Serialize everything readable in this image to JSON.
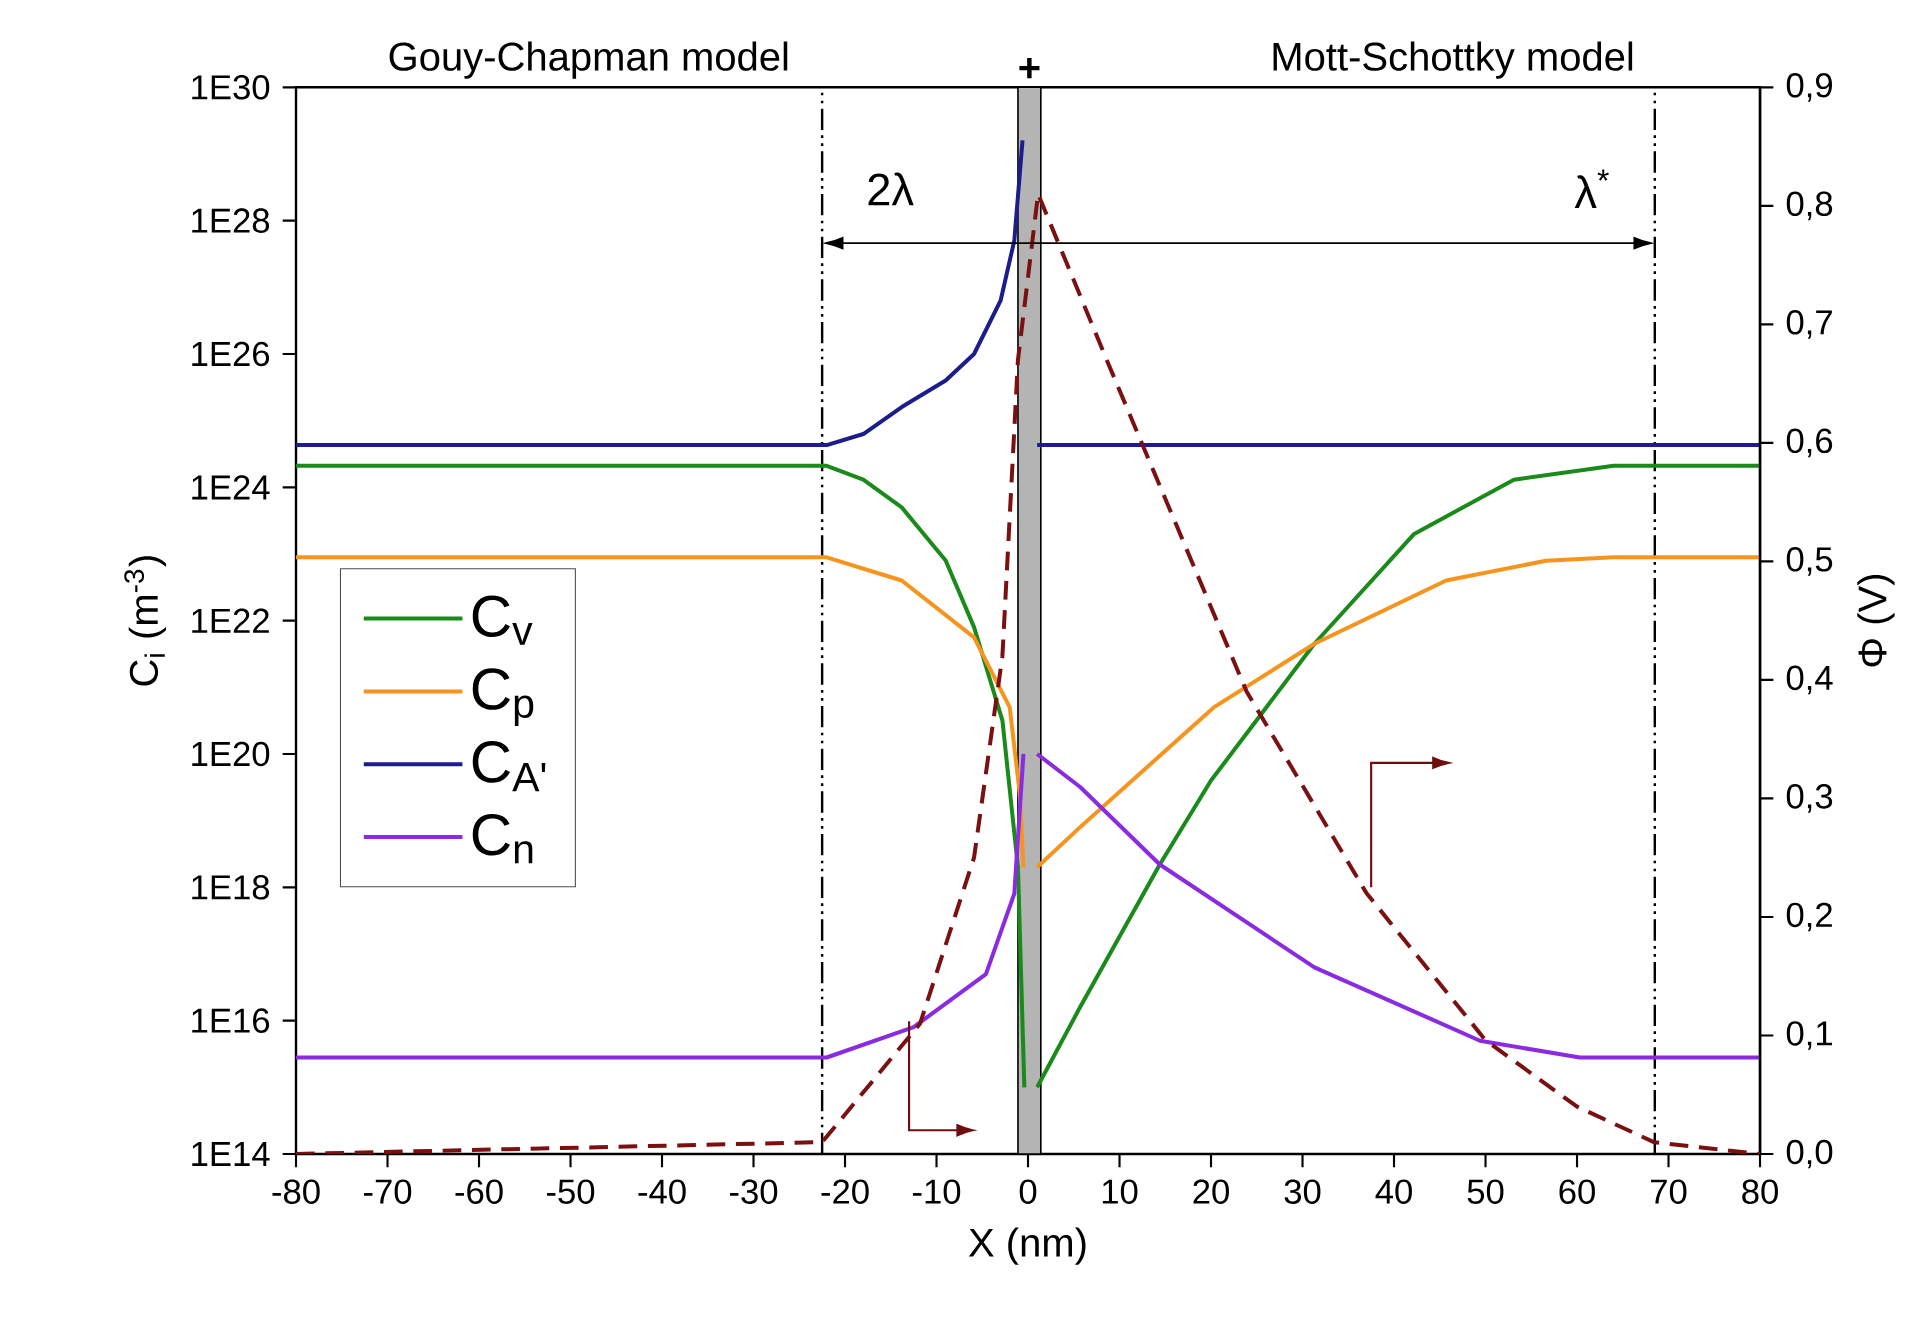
{
  "chart_data": {
    "type": "line",
    "xlabel": "X (nm)",
    "ylabel": "C$_{i}$ (m$^{-3}$)",
    "y2label": "Φ (V)",
    "annotations": [
      "Gouy-Chapman model",
      "Mott-Schottky model"
    ],
    "xlim": [
      -80,
      80
    ],
    "xticks": [
      -80,
      -70,
      -60,
      -50,
      -40,
      -30,
      -20,
      -10,
      0,
      10,
      20,
      30,
      40,
      50,
      60,
      70,
      80
    ],
    "log": "y",
    "ylim": [
      100000000000000.0,
      1e+30
    ],
    "yticks": [
      {
        "value": 100000000000000.0,
        "label": "1E14"
      },
      {
        "value": 1e+16,
        "label": "1E16"
      },
      {
        "value": 1e+18,
        "label": "1E18"
      },
      {
        "value": 1e+20,
        "label": "1E20"
      },
      {
        "value": 1e+22,
        "label": "1E22"
      },
      {
        "value": 1e+24,
        "label": "1E24"
      },
      {
        "value": 1e+26,
        "label": "1E26"
      },
      {
        "value": 1e+28,
        "label": "1E28"
      },
      {
        "value": 1e+30,
        "label": "1E30"
      }
    ],
    "y2lim": [
      0,
      0.9
    ],
    "y2ticks": [
      {
        "value": 0.0,
        "label": "0,0"
      },
      {
        "value": 0.1,
        "label": "0,1"
      },
      {
        "value": 0.2,
        "label": "0,2"
      },
      {
        "value": 0.3,
        "label": "0,3"
      },
      {
        "value": 0.4,
        "label": "0,4"
      },
      {
        "value": 0.5,
        "label": "0,5"
      },
      {
        "value": 0.6,
        "label": "0,6"
      },
      {
        "value": 0.7,
        "label": "0,7"
      },
      {
        "value": 0.8,
        "label": "0,8"
      },
      {
        "value": 0.9,
        "label": "0,9"
      }
    ],
    "legend": "left",
    "line_style": "solid",
    "series": [
      {
        "name": "C$_{v}$",
        "color": "#1a8a1a",
        "x": [
          -80,
          -22,
          -18,
          -13.8,
          -9,
          -5.9,
          -2.8,
          -1.1,
          -0.4,
          0,
          1,
          5.7,
          14.4,
          20,
          31.3,
          42.2,
          53.1,
          64,
          80
        ],
        "values": [
          2.1e+24,
          2.1e+24,
          1.3e+24,
          5e+23,
          8e+22,
          8e+21,
          3.2e+20,
          2e+18,
          1000000000000000.0,
          null,
          1000000000000000.0,
          1.6e+16,
          2.2e+18,
          4e+19,
          4.5e+21,
          2e+23,
          1.3e+24,
          2.1e+24,
          2.1e+24
        ]
      },
      {
        "name": "C$_{p}$",
        "color": "#f7941d",
        "x": [
          -80,
          -22,
          -13.8,
          -5.9,
          -2,
          -0.9,
          -0.5,
          0,
          1,
          5.7,
          20.3,
          31.3,
          45.7,
          56.6,
          64,
          80
        ],
        "values": [
          8.9e+22,
          8.9e+22,
          4e+22,
          5.6e+21,
          5e+20,
          2.5e+19,
          2e+18,
          null,
          2e+18,
          8e+18,
          5e+20,
          4.5e+21,
          4e+22,
          7.9e+22,
          8.9e+22,
          8.9e+22
        ]
      },
      {
        "name": "C$_{A'}$",
        "color": "#1c1c8c",
        "x": [
          -80,
          -22,
          -18,
          -13.8,
          -9,
          -5.9,
          -3,
          -1.5,
          -0.6,
          0,
          1,
          80
        ],
        "values": [
          4.3e+24,
          4.3e+24,
          6.3e+24,
          1.6e+25,
          4e+25,
          1e+26,
          6.3e+26,
          5e+27,
          1.6e+29,
          null,
          4.3e+24,
          4.3e+24
        ]
      },
      {
        "name": "C$_{n}$",
        "color": "#8a2be2",
        "x": [
          -80,
          -22,
          -12.5,
          -4.6,
          -1.5,
          -0.5,
          0,
          1,
          5.7,
          14.4,
          31.3,
          49.4,
          60.3,
          65,
          80
        ],
        "values": [
          2800000000000000.0,
          2800000000000000.0,
          8000000000000000.0,
          5e+16,
          8e+17,
          1e+20,
          null,
          1e+20,
          3.2e+19,
          2.2e+18,
          6.3e+16,
          5000000000000000.0,
          2800000000000000.0,
          2800000000000000.0,
          2800000000000000.0
        ]
      },
      {
        "axis": "y2",
        "color": "#7b1010",
        "line_style": "dashed",
        "x": [
          -80,
          -22.5,
          -11.8,
          -5.9,
          -2.8,
          -1.1,
          1.1,
          8.6,
          23.9,
          37,
          50,
          60,
          68.4,
          80
        ],
        "values": [
          0,
          0.01,
          0.11,
          0.25,
          0.42,
          0.67,
          0.81,
          0.67,
          0.39,
          0.22,
          0.096,
          0.04,
          0.01,
          0
        ]
      }
    ],
    "ref_lines": [
      {
        "axis": "x",
        "value": -22.5,
        "label": "2λ",
        "line_style": "dashdot",
        "color": "#000000"
      },
      {
        "axis": "x",
        "value": 68.5,
        "label": "λ$^{*}$",
        "line_style": "dashdot",
        "color": "#000000"
      }
    ],
    "bands": [
      {
        "axis": "x",
        "from": -1.1,
        "to": 1.4,
        "label": "+",
        "color": "#b4b4b4"
      }
    ]
  }
}
